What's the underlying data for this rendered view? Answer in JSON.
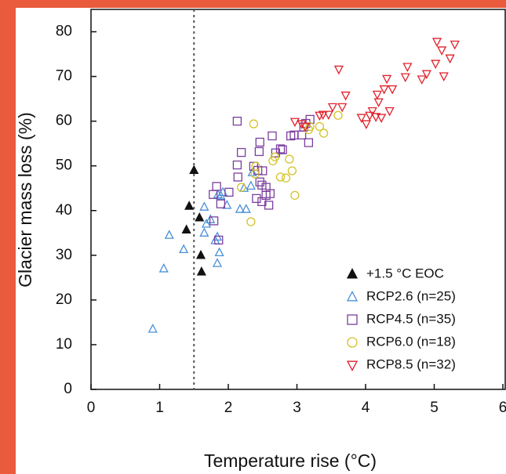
{
  "chart_data": {
    "type": "scatter",
    "xlabel": "Temperature rise (°C)",
    "ylabel": "Glacier mass loss (%)",
    "xlim": [
      0,
      6
    ],
    "xticks": [
      0,
      1,
      2,
      3,
      4,
      5,
      6
    ],
    "ylim": [
      0,
      85
    ],
    "yticks": [
      0,
      10,
      20,
      30,
      40,
      50,
      60,
      70,
      80
    ],
    "vline": 1.5,
    "legend": "lower-right",
    "series": [
      {
        "name": "+1.5 °C EOC",
        "color": "#111111",
        "marker": "triangle-up-filled",
        "x": [
          1.5,
          1.43,
          1.39,
          1.58,
          1.6,
          1.61
        ],
        "values": [
          49,
          41,
          35.7,
          38.4,
          30,
          26.3
        ]
      },
      {
        "name": "RCP2.6 (n=25)",
        "color": "#4a90d9",
        "marker": "triangle-up",
        "x": [
          0.9,
          1.06,
          1.14,
          1.35,
          1.65,
          1.68,
          1.74,
          1.81,
          1.84,
          1.87,
          1.89,
          1.98,
          1.85,
          1.92,
          2.17,
          2.26,
          2.23,
          2.35,
          2.33,
          1.65,
          1.84
        ],
        "values": [
          13.5,
          27,
          34.5,
          31.3,
          35,
          37,
          38,
          33.3,
          28.2,
          30.6,
          43.3,
          41.2,
          43.6,
          44.1,
          40.3,
          40.3,
          45,
          48.5,
          45.5,
          40.8,
          34.1
        ]
      },
      {
        "name": "RCP4.5 (n=35)",
        "color": "#7b3f9e",
        "marker": "square",
        "x": [
          2.13,
          2.19,
          2.13,
          2.14,
          1.78,
          1.83,
          1.89,
          2.01,
          1.86,
          1.79,
          2.46,
          2.45,
          2.64,
          2.69,
          2.76,
          2.79,
          2.91,
          2.96,
          3.07,
          3.19,
          3.17,
          2.43,
          2.5,
          2.46,
          2.49,
          2.55,
          2.55,
          2.61,
          2.41,
          2.49,
          2.59,
          3.1,
          3.13,
          2.37
        ],
        "values": [
          60,
          53,
          50.2,
          47.5,
          43.6,
          45.4,
          41.5,
          44.1,
          33.4,
          37.7,
          55.3,
          53.2,
          56.7,
          52.9,
          53.8,
          53.6,
          56.7,
          56.9,
          56.9,
          60.4,
          55.2,
          49,
          48.9,
          46.4,
          45.7,
          45.2,
          43.4,
          43.8,
          42.7,
          42,
          41.2,
          58.7,
          59.5,
          49.9
        ]
      },
      {
        "name": "RCP6.0 (n=18)",
        "color": "#d4c227",
        "marker": "circle",
        "x": [
          2.37,
          2.4,
          2.39,
          2.19,
          2.33,
          2.65,
          2.68,
          2.76,
          2.84,
          2.89,
          2.93,
          2.97,
          3.19,
          3.17,
          3.33,
          3.39,
          3.6
        ],
        "values": [
          59.4,
          49.9,
          48.2,
          45.2,
          37.5,
          51.1,
          52,
          47.5,
          47.3,
          51.5,
          48.9,
          43.4,
          58.8,
          58.1,
          58.8,
          57.3,
          61.3
        ]
      },
      {
        "name": "RCP8.5 (n=32)",
        "color": "#e0202a",
        "marker": "triangle-down",
        "x": [
          5.04,
          5.3,
          5.11,
          5.23,
          5.02,
          4.89,
          5.14,
          4.82,
          4.58,
          4.31,
          4.61,
          4.27,
          4.39,
          4.17,
          4.19,
          4.1,
          4.06,
          3.94,
          4.01,
          4.15,
          4.23,
          4.35,
          3.61,
          3.71,
          3.66,
          3.52,
          3.38,
          3.46,
          3.33,
          2.97,
          3.07,
          3.12
        ],
        "values": [
          77.8,
          77.2,
          75.9,
          74.1,
          72.9,
          70.6,
          70.1,
          69.4,
          69.9,
          69.5,
          72.2,
          67.2,
          67.2,
          66,
          64.3,
          62.3,
          61.3,
          60.8,
          59.4,
          61,
          60.8,
          62.3,
          71.6,
          65.8,
          63.2,
          63.2,
          61.5,
          61.5,
          61.3,
          59.9,
          59.4,
          58.8
        ]
      }
    ]
  }
}
